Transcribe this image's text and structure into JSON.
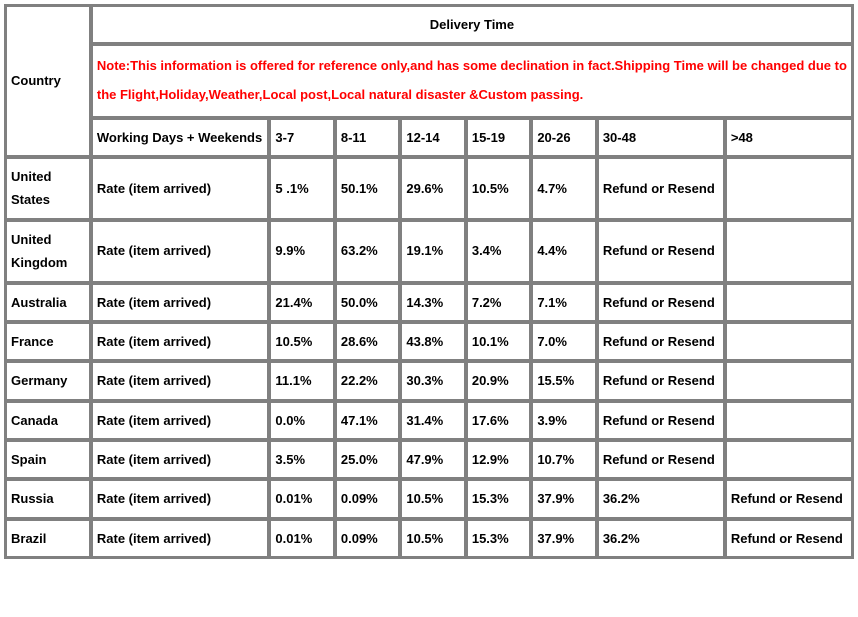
{
  "header": {
    "country_label": "Country",
    "delivery_time": "Delivery Time",
    "note": "Note:This information is offered for reference only,and has some declination in fact.Shipping Time will be changed due to the Flight,Holiday,Weather,Local post,Local natural disaster &Custom passing.",
    "working_days": "Working Days + Weekends",
    "ranges": [
      "3-7",
      "8-11",
      "12-14",
      "15-19",
      "20-26",
      "30-48",
      ">48"
    ]
  },
  "rate_label": "Rate (item arrived)",
  "refund_label": "Refund or Resend",
  "rows": [
    {
      "country": "United States",
      "values": [
        "5 .1%",
        "50.1%",
        "29.6%",
        "10.5%",
        "4.7%",
        "Refund or Resend",
        ""
      ]
    },
    {
      "country": "United Kingdom",
      "values": [
        "9.9%",
        "63.2%",
        "19.1%",
        "3.4%",
        "4.4%",
        "Refund or Resend",
        ""
      ]
    },
    {
      "country": "Australia",
      "values": [
        "21.4%",
        "50.0%",
        "14.3%",
        "7.2%",
        "7.1%",
        "Refund or Resend",
        ""
      ]
    },
    {
      "country": "France",
      "values": [
        "10.5%",
        "28.6%",
        "43.8%",
        "10.1%",
        "7.0%",
        "Refund or Resend",
        ""
      ]
    },
    {
      "country": "Germany",
      "values": [
        "11.1%",
        "22.2%",
        "30.3%",
        "20.9%",
        "15.5%",
        "Refund or Resend",
        ""
      ]
    },
    {
      "country": "Canada",
      "values": [
        "0.0%",
        "47.1%",
        "31.4%",
        "17.6%",
        "3.9%",
        "Refund or Resend",
        ""
      ]
    },
    {
      "country": "Spain",
      "values": [
        "3.5%",
        "25.0%",
        "47.9%",
        "12.9%",
        "10.7%",
        "Refund or Resend",
        ""
      ]
    },
    {
      "country": "Russia",
      "values": [
        "0.01%",
        "0.09%",
        "10.5%",
        "15.3%",
        "37.9%",
        "36.2%",
        "Refund or Resend"
      ]
    },
    {
      "country": "Brazil",
      "values": [
        "0.01%",
        "0.09%",
        "10.5%",
        "15.3%",
        "37.9%",
        "36.2%",
        "Refund or Resend"
      ]
    }
  ],
  "colors": {
    "note_text": "#ff0000",
    "border": "#808080",
    "background": "#ffffff"
  },
  "font_size": 13
}
